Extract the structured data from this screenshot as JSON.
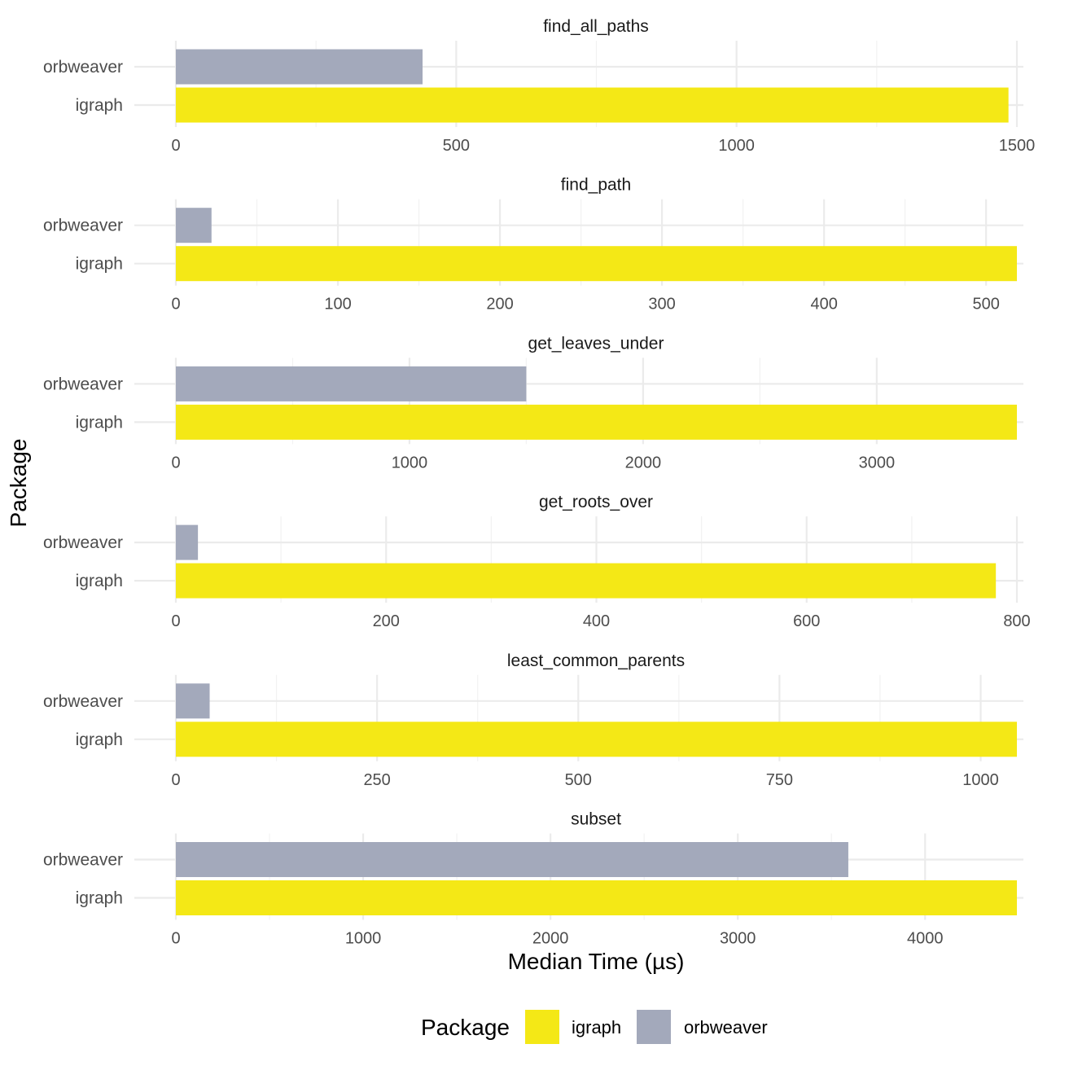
{
  "chart_data": {
    "type": "bar",
    "orientation": "horizontal",
    "xlabel": "Median Time (µs)",
    "ylabel": "Package",
    "categories": [
      "orbweaver",
      "igraph"
    ],
    "grid": true,
    "legend": {
      "title": "Package",
      "placement": "bottom",
      "entries": [
        {
          "name": "igraph",
          "color": "#f4e816"
        },
        {
          "name": "orbweaver",
          "color": "#a3a9bb"
        }
      ]
    },
    "panels": [
      {
        "title": "find_all_paths",
        "xlim": [
          0,
          1500
        ],
        "ticks": [
          0,
          500,
          1000,
          1500
        ],
        "tick_labels": [
          "0",
          "500",
          "1000",
          "1500"
        ],
        "values": {
          "orbweaver": 440,
          "igraph": 1485
        }
      },
      {
        "title": "find_path",
        "xlim": [
          0,
          519
        ],
        "ticks": [
          0,
          100,
          200,
          300,
          400,
          500
        ],
        "tick_labels": [
          "0",
          "100",
          "200",
          "300",
          "400",
          "500"
        ],
        "values": {
          "orbweaver": 22,
          "igraph": 519
        }
      },
      {
        "title": "get_leaves_under",
        "xlim": [
          0,
          3600
        ],
        "ticks": [
          0,
          1000,
          2000,
          3000
        ],
        "tick_labels": [
          "0",
          "1000",
          "2000",
          "3000"
        ],
        "values": {
          "orbweaver": 1500,
          "igraph": 3600
        }
      },
      {
        "title": "get_roots_over",
        "xlim": [
          0,
          800
        ],
        "ticks": [
          0,
          200,
          400,
          600,
          800
        ],
        "tick_labels": [
          "0",
          "200",
          "400",
          "600",
          "800"
        ],
        "values": {
          "orbweaver": 21,
          "igraph": 780
        }
      },
      {
        "title": "least_common_parents",
        "xlim": [
          0,
          1045
        ],
        "ticks": [
          0,
          250,
          500,
          750,
          1000
        ],
        "tick_labels": [
          "0",
          "250",
          "500",
          "750",
          "1000"
        ],
        "values": {
          "orbweaver": 42,
          "igraph": 1045
        }
      },
      {
        "title": "subset",
        "xlim": [
          0,
          4490
        ],
        "ticks": [
          0,
          1000,
          2000,
          3000,
          4000
        ],
        "tick_labels": [
          "0",
          "1000",
          "2000",
          "3000",
          "4000"
        ],
        "values": {
          "orbweaver": 3590,
          "igraph": 4490
        }
      }
    ]
  }
}
